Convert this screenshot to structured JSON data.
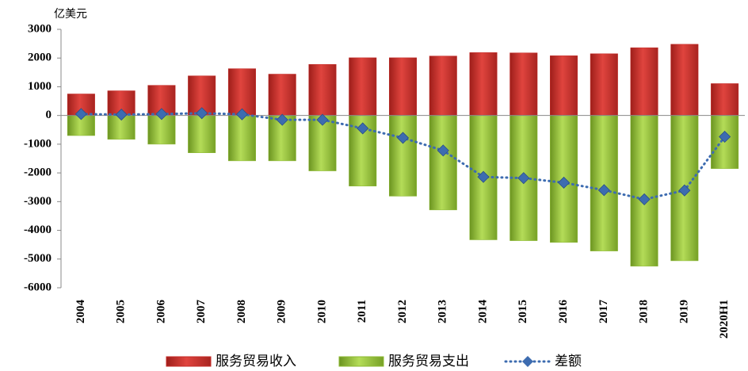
{
  "chart_data": {
    "type": "bar",
    "y_axis_label": "亿美元",
    "categories": [
      "2004",
      "2005",
      "2006",
      "2007",
      "2008",
      "2009",
      "2010",
      "2011",
      "2012",
      "2013",
      "2014",
      "2015",
      "2016",
      "2017",
      "2018",
      "2019",
      "2020H1"
    ],
    "series": [
      {
        "name": "服务贸易收入",
        "type": "bar",
        "color": "#c42a26",
        "values": [
          750,
          860,
          1050,
          1380,
          1630,
          1440,
          1780,
          2010,
          2010,
          2070,
          2190,
          2180,
          2080,
          2150,
          2360,
          2480,
          1110
        ]
      },
      {
        "name": "服务贸易支出",
        "type": "bar",
        "color": "#8cb832",
        "values": [
          -700,
          -830,
          -1000,
          -1300,
          -1580,
          -1580,
          -1930,
          -2460,
          -2810,
          -3290,
          -4330,
          -4360,
          -4420,
          -4720,
          -5250,
          -5060,
          -1850
        ]
      },
      {
        "name": "差额",
        "type": "line",
        "color": "#3d6cb0",
        "values": [
          50,
          30,
          50,
          80,
          40,
          -150,
          -150,
          -450,
          -780,
          -1220,
          -2140,
          -2180,
          -2340,
          -2600,
          -2920,
          -2610,
          -740
        ]
      }
    ],
    "ylim": [
      -6000,
      3000
    ],
    "yticks": [
      3000,
      2000,
      1000,
      0,
      -1000,
      -2000,
      -3000,
      -4000,
      -5000,
      -6000
    ]
  }
}
